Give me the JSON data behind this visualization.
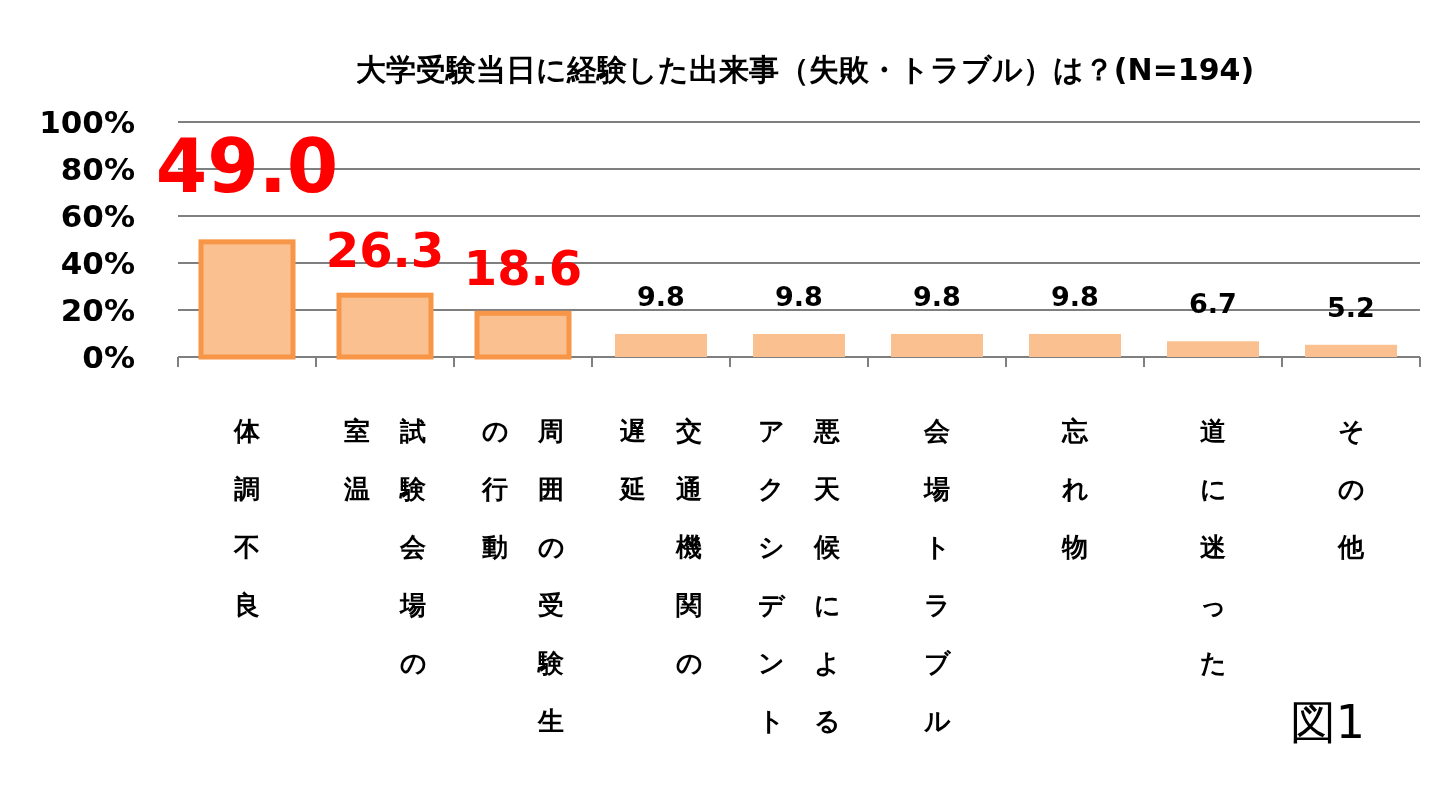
{
  "chart_data": {
    "type": "bar",
    "title": "大学受験当日に経験した出来事（失敗・トラブル）は？(N=194)",
    "categories": [
      "体調不良",
      "試験会場の室温",
      "周囲の受験生の行動",
      "交通機関の遅延",
      "悪天候によるアクシデント",
      "会場トラブル",
      "忘れ物",
      "道に迷った",
      "その他"
    ],
    "values": [
      49.0,
      26.3,
      18.6,
      9.8,
      9.8,
      9.8,
      9.8,
      6.7,
      5.2
    ],
    "color": "#fac090",
    "colors": [
      "#f79646",
      "#f79646",
      "#f79646",
      "#fac090",
      "#fac090",
      "#fac090",
      "#fac090",
      "#fac090",
      "#fac090"
    ],
    "value_labels": [
      null,
      null,
      null,
      "9.8",
      "9.8",
      "9.8",
      "9.8",
      "6.7",
      "5.2"
    ],
    "annotations": [
      {
        "text": "49.0",
        "x": "体調不良",
        "y": 49.0
      },
      {
        "text": "26.3",
        "x": "試験会場の室温",
        "y": 26.3
      },
      {
        "text": "18.6",
        "x": "周囲の受験生の行動",
        "y": 18.6
      },
      "図1"
    ],
    "ylim": [
      0,
      100
    ],
    "yticks": [
      {
        "value": 0,
        "label": "0%"
      },
      {
        "value": 20,
        "label": "20%"
      },
      {
        "value": 40,
        "label": "40%"
      },
      {
        "value": 60,
        "label": "60%"
      },
      {
        "value": 80,
        "label": "80%"
      },
      {
        "value": 100,
        "label": "100%"
      }
    ],
    "grid": "y"
  }
}
